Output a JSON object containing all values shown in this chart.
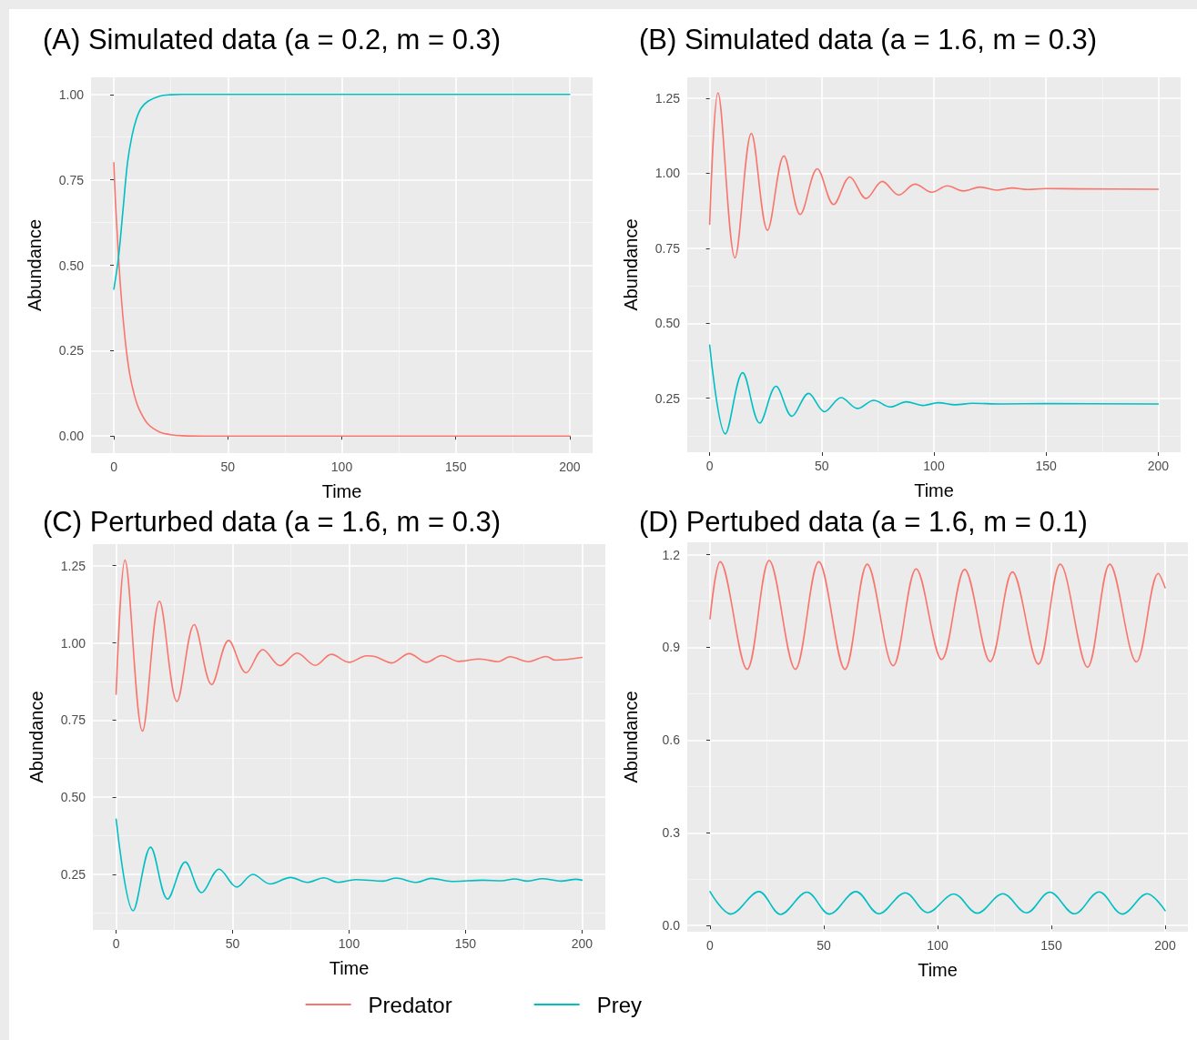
{
  "chart_data": [
    {
      "type": "line",
      "title": "(A) Simulated data (a = 0.2, m = 0.3)",
      "xlabel": "Time",
      "ylabel": "Abundance",
      "xlim": [
        -10,
        210
      ],
      "xticks": [
        0,
        50,
        100,
        150,
        200
      ],
      "ylim": [
        -0.05,
        1.05
      ],
      "yticks": [
        {
          "value": 0,
          "label": "0.00"
        },
        {
          "value": 0.25,
          "label": "0.25"
        },
        {
          "value": 0.5,
          "label": "0.50"
        },
        {
          "value": 0.75,
          "label": "0.75"
        },
        {
          "value": 1,
          "label": "1.00"
        }
      ],
      "grid": true,
      "marker": "none",
      "series": [
        {
          "color": "#f8766d",
          "x": [
            0,
            1,
            3,
            5,
            7,
            9,
            11,
            15,
            20,
            25,
            30,
            40,
            200
          ],
          "values": [
            0.8,
            0.65,
            0.43,
            0.28,
            0.18,
            0.12,
            0.08,
            0.035,
            0.012,
            0.004,
            0.001,
            0,
            0
          ]
        },
        {
          "color": "#00bfc4",
          "x": [
            0,
            2,
            4,
            6,
            8,
            10,
            12,
            15,
            20,
            25,
            30,
            40,
            200
          ],
          "values": [
            0.43,
            0.52,
            0.66,
            0.8,
            0.88,
            0.93,
            0.96,
            0.98,
            0.995,
            0.999,
            1,
            1,
            1
          ]
        }
      ]
    },
    {
      "type": "line",
      "title": "(B) Simulated data (a = 1.6, m = 0.3)",
      "xlabel": "Time",
      "ylabel": "Abundance",
      "xlim": [
        -10,
        210
      ],
      "xticks": [
        0,
        50,
        100,
        150,
        200
      ],
      "ylim": [
        0.07,
        1.32
      ],
      "yticks": [
        {
          "value": 0.25,
          "label": "0.25"
        },
        {
          "value": 0.5,
          "label": "0.50"
        },
        {
          "value": 0.75,
          "label": "0.75"
        },
        {
          "value": 1,
          "label": "1.00"
        },
        {
          "value": 1.25,
          "label": "1.25"
        }
      ],
      "grid": true,
      "marker": "none",
      "series": [
        {
          "color": "#f8766d",
          "x": [
            0,
            3.7,
            11.3,
            18.6,
            25.8,
            33.1,
            40.4,
            48,
            55.3,
            62.5,
            69.8,
            77,
            84.3,
            91.6,
            99,
            106,
            113,
            120.7,
            128,
            135,
            142,
            150,
            165,
            200
          ],
          "values": [
            0.83,
            1.268,
            0.718,
            1.133,
            0.81,
            1.058,
            0.863,
            1.015,
            0.896,
            0.988,
            0.916,
            0.973,
            0.928,
            0.964,
            0.937,
            0.958,
            0.941,
            0.954,
            0.944,
            0.951,
            0.946,
            0.949,
            0.948,
            0.947
          ]
        },
        {
          "color": "#00bfc4",
          "x": [
            0,
            7,
            14.7,
            22.3,
            29.6,
            36.7,
            44.1,
            51.2,
            58.6,
            65.9,
            73.2,
            80.5,
            87.7,
            95,
            102,
            109.5,
            117,
            130,
            150,
            200
          ],
          "values": [
            0.427,
            0.131,
            0.335,
            0.167,
            0.29,
            0.19,
            0.266,
            0.205,
            0.252,
            0.216,
            0.243,
            0.221,
            0.238,
            0.226,
            0.235,
            0.228,
            0.233,
            0.231,
            0.232,
            0.231
          ]
        }
      ]
    },
    {
      "type": "line",
      "title": "(C) Perturbed data (a = 1.6, m = 0.3)",
      "xlabel": "Time",
      "ylabel": "Abundance",
      "xlim": [
        -10,
        210
      ],
      "xticks": [
        0,
        50,
        100,
        150,
        200
      ],
      "ylim": [
        0.07,
        1.32
      ],
      "yticks": [
        {
          "value": 0.25,
          "label": "0.25"
        },
        {
          "value": 0.5,
          "label": "0.50"
        },
        {
          "value": 0.75,
          "label": "0.75"
        },
        {
          "value": 1,
          "label": "1.00"
        },
        {
          "value": 1.25,
          "label": "1.25"
        }
      ],
      "grid": true,
      "marker": "none",
      "legend": "bottom",
      "series": [
        {
          "name": "Predator",
          "color": "#f8766d",
          "x": [
            0,
            3.8,
            11.3,
            18.6,
            26.1,
            33.5,
            41,
            48.3,
            55.8,
            63,
            70.4,
            77.7,
            85.5,
            92.4,
            100,
            107.5,
            111.4,
            118.3,
            125.8,
            133.2,
            139.7,
            147.2,
            156,
            159,
            164,
            169,
            177,
            184.6,
            188.6,
            200
          ],
          "values": [
            0.834,
            1.268,
            0.714,
            1.135,
            0.81,
            1.059,
            0.865,
            1.008,
            0.903,
            0.978,
            0.926,
            0.967,
            0.927,
            0.963,
            0.937,
            0.958,
            0.955,
            0.935,
            0.965,
            0.937,
            0.959,
            0.94,
            0.948,
            0.945,
            0.939,
            0.955,
            0.939,
            0.956,
            0.944,
            0.953
          ]
        },
        {
          "name": "Prey",
          "color": "#00bfc4",
          "x": [
            0,
            7.3,
            14.8,
            22.1,
            29.7,
            36.7,
            44.2,
            51.8,
            58.7,
            66.1,
            74.9,
            82,
            89.2,
            95.2,
            102.7,
            114.6,
            119.9,
            129,
            135.3,
            144,
            157.5,
            165.5,
            171,
            176.6,
            183,
            191,
            197.3,
            200
          ],
          "values": [
            0.429,
            0.132,
            0.338,
            0.17,
            0.29,
            0.191,
            0.267,
            0.209,
            0.25,
            0.219,
            0.24,
            0.224,
            0.239,
            0.224,
            0.233,
            0.228,
            0.238,
            0.224,
            0.237,
            0.227,
            0.231,
            0.229,
            0.235,
            0.228,
            0.236,
            0.228,
            0.234,
            0.231
          ]
        }
      ]
    },
    {
      "type": "line",
      "title": "(D) Pertubed data (a = 1.6, m = 0.1)",
      "xlabel": "Time",
      "ylabel": "Abundance",
      "xlim": [
        -10,
        210
      ],
      "xticks": [
        0,
        50,
        100,
        150,
        200
      ],
      "ylim": [
        -0.02,
        1.24
      ],
      "yticks": [
        {
          "value": 0,
          "label": "0.0"
        },
        0.3,
        0.6,
        0.9,
        1.2
      ],
      "grid": true,
      "marker": "none",
      "series": [
        {
          "color": "#f8766d",
          "x": [
            0,
            4.5,
            16.3,
            26,
            37.5,
            47.8,
            59.3,
            69.1,
            80.5,
            90.6,
            101.8,
            111.9,
            123.1,
            132.9,
            144.3,
            153.9,
            165.9,
            175.7,
            187.4,
            197,
            200
          ],
          "values": [
            0.992,
            1.177,
            0.829,
            1.181,
            0.829,
            1.177,
            0.829,
            1.169,
            0.841,
            1.154,
            0.861,
            1.152,
            0.854,
            1.144,
            0.846,
            1.169,
            0.836,
            1.169,
            0.853,
            1.139,
            1.093
          ]
        },
        {
          "color": "#00bfc4",
          "x": [
            0,
            9.2,
            21.5,
            31,
            42.6,
            52.5,
            64.1,
            74.2,
            85.8,
            95.6,
            107.2,
            117.4,
            128.7,
            139.1,
            149.3,
            160.2,
            171,
            181.2,
            192.1,
            200
          ],
          "values": [
            0.11,
            0.037,
            0.11,
            0.036,
            0.108,
            0.037,
            0.11,
            0.038,
            0.106,
            0.042,
            0.102,
            0.04,
            0.103,
            0.041,
            0.108,
            0.038,
            0.109,
            0.037,
            0.103,
            0.048
          ]
        }
      ]
    }
  ]
}
